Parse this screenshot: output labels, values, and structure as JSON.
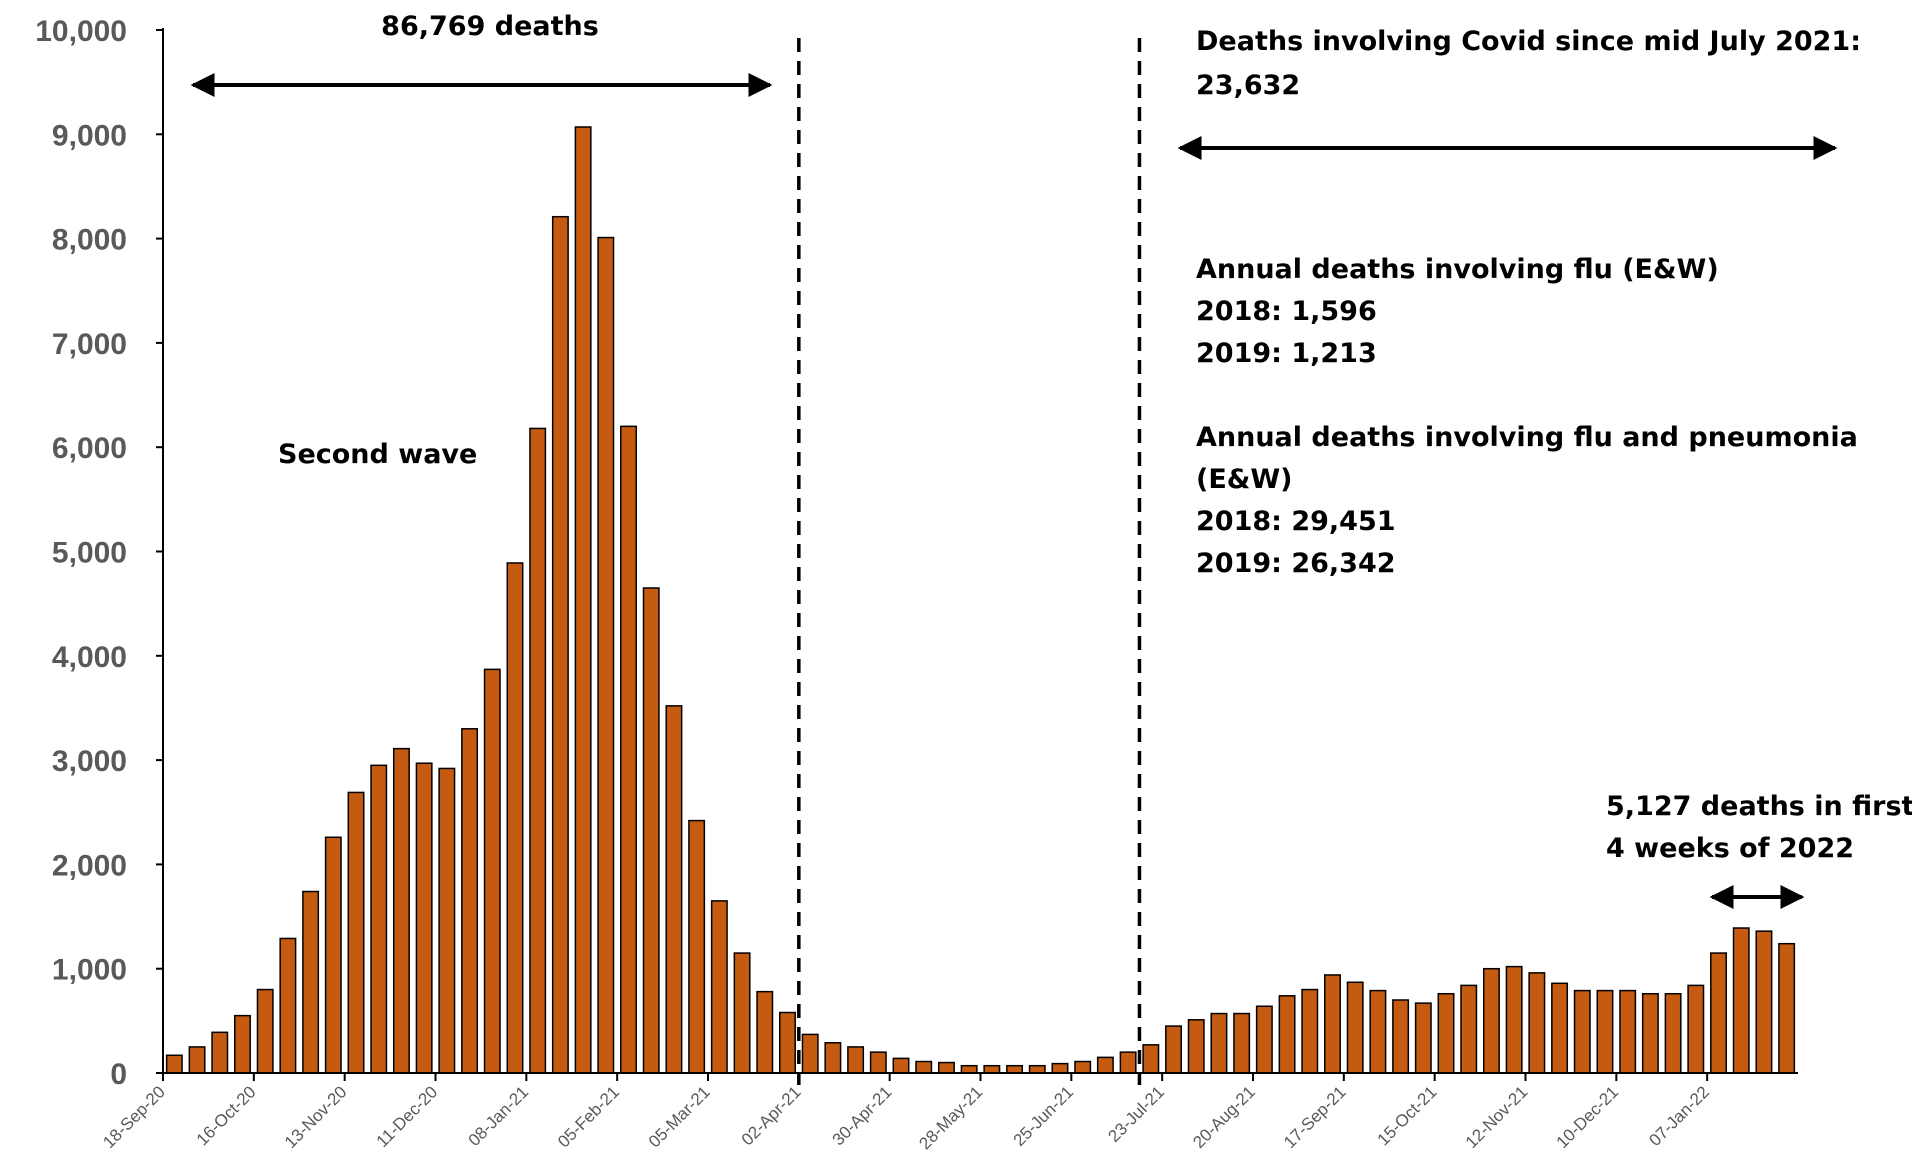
{
  "chart_data": {
    "type": "bar",
    "title": "",
    "xlabel": "",
    "ylabel": "",
    "ylim": [
      0,
      10000
    ],
    "yticks": [
      "0",
      "1,000",
      "2,000",
      "3,000",
      "4,000",
      "5,000",
      "6,000",
      "7,000",
      "8,000",
      "9,000",
      "10,000"
    ],
    "ytick_values": [
      0,
      1000,
      2000,
      3000,
      4000,
      5000,
      6000,
      7000,
      8000,
      9000,
      10000
    ],
    "xtick_labels": [
      "18-Sep-20",
      "16-Oct-20",
      "13-Nov-20",
      "11-Dec-20",
      "08-Jan-21",
      "05-Feb-21",
      "05-Mar-21",
      "02-Apr-21",
      "30-Apr-21",
      "28-May-21",
      "25-Jun-21",
      "23-Jul-21",
      "20-Aug-21",
      "17-Sep-21",
      "15-Oct-21",
      "12-Nov-21",
      "10-Dec-21",
      "07-Jan-22"
    ],
    "xtick_every": 4,
    "values": [
      170,
      250,
      390,
      550,
      800,
      1290,
      1740,
      2260,
      2690,
      2950,
      3110,
      2970,
      2920,
      3300,
      3870,
      4890,
      6180,
      8210,
      9070,
      8010,
      6200,
      4650,
      3520,
      2420,
      1650,
      1150,
      780,
      580,
      370,
      290,
      250,
      200,
      140,
      110,
      100,
      70,
      70,
      70,
      70,
      90,
      110,
      150,
      200,
      270,
      450,
      510,
      570,
      570,
      640,
      740,
      800,
      940,
      870,
      790,
      700,
      670,
      760,
      840,
      1000,
      1020,
      960,
      860,
      790,
      790,
      790,
      760,
      760,
      840,
      1150,
      1390,
      1360,
      1240
    ],
    "bar_color": "#c55a11",
    "axis_color": "#000000",
    "tick_color": "#595959",
    "grid": false,
    "legend": "none",
    "dividers_after_bar_index": [
      27,
      42
    ],
    "annotations": {
      "first_period": "86,769 deaths",
      "second_wave": "Second wave",
      "since_july_line1": "Deaths involving Covid since mid July 2021:",
      "since_july_line2": "23,632",
      "flu_title": "Annual deaths involving flu (E&W)",
      "flu_2018": "2018: 1,596",
      "flu_2019": "2019: 1,213",
      "flu_pneu_title": "Annual deaths involving flu and pneumonia",
      "flu_pneu_title2": "(E&W)",
      "flu_pneu_2018": "2018: 29,451",
      "flu_pneu_2019": "2019: 26,342",
      "first_weeks_line1": "5,127 deaths in first",
      "first_weeks_line2": "4 weeks of 2022"
    }
  }
}
